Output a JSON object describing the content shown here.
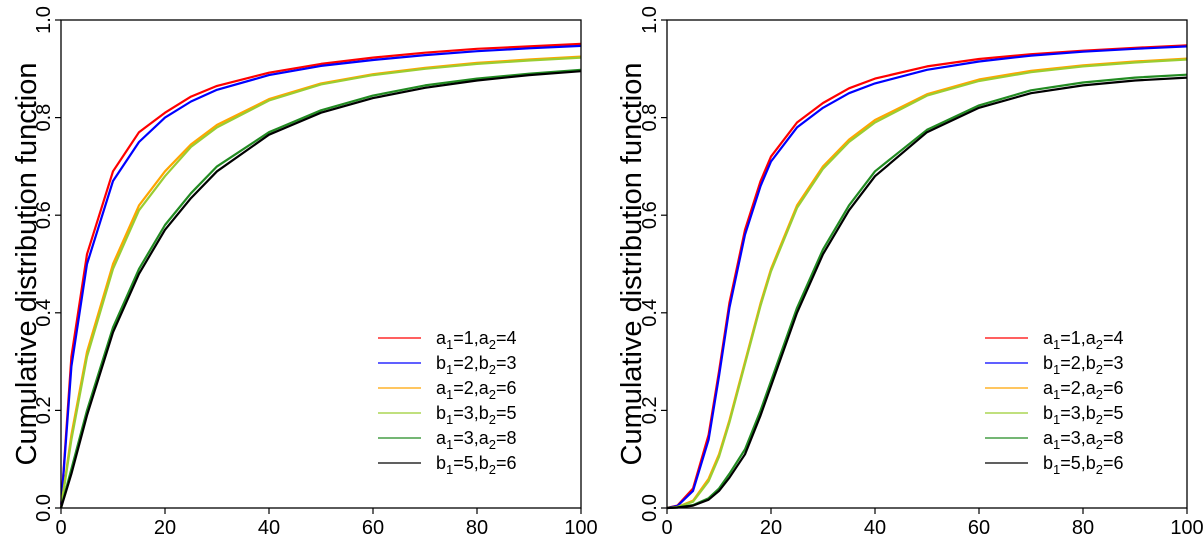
{
  "chart_data": [
    {
      "type": "line",
      "title": "",
      "xlabel": "",
      "ylabel": "Cumulative distribution function",
      "xlim": [
        0,
        100
      ],
      "ylim": [
        0,
        1
      ],
      "xticks": [
        0,
        20,
        40,
        60,
        80,
        100
      ],
      "yticks": [
        0.0,
        0.2,
        0.4,
        0.6,
        0.8,
        1.0
      ],
      "grid": false,
      "legend_position": "bottom-right",
      "x": [
        0,
        2,
        5,
        10,
        15,
        20,
        25,
        30,
        40,
        50,
        60,
        70,
        80,
        90,
        100
      ],
      "series": [
        {
          "name": "a1=1,a2=4",
          "color": "#ff0000",
          "legend": [
            {
              "t": "a"
            },
            {
              "s": "1"
            },
            {
              "t": "=1,a"
            },
            {
              "s": "2"
            },
            {
              "t": "=4"
            }
          ],
          "values": [
            0.0,
            0.31,
            0.52,
            0.69,
            0.77,
            0.81,
            0.843,
            0.865,
            0.892,
            0.91,
            0.923,
            0.933,
            0.941,
            0.946,
            0.951
          ]
        },
        {
          "name": "b1=2,b2=3",
          "color": "#0000ff",
          "legend": [
            {
              "t": "b"
            },
            {
              "s": "1"
            },
            {
              "t": "=2,b"
            },
            {
              "s": "2"
            },
            {
              "t": "=3"
            }
          ],
          "values": [
            0.0,
            0.29,
            0.5,
            0.67,
            0.75,
            0.8,
            0.833,
            0.857,
            0.887,
            0.906,
            0.918,
            0.928,
            0.936,
            0.942,
            0.947
          ]
        },
        {
          "name": "a1=2,a2=6",
          "color": "#ffa500",
          "legend": [
            {
              "t": "a"
            },
            {
              "s": "1"
            },
            {
              "t": "=2,a"
            },
            {
              "s": "2"
            },
            {
              "t": "=6"
            }
          ],
          "values": [
            0.0,
            0.15,
            0.32,
            0.5,
            0.62,
            0.69,
            0.745,
            0.785,
            0.838,
            0.87,
            0.889,
            0.902,
            0.912,
            0.919,
            0.925
          ]
        },
        {
          "name": "b1=3,b2=5",
          "color": "#9acd32",
          "legend": [
            {
              "t": "b"
            },
            {
              "s": "1"
            },
            {
              "t": "=3,b"
            },
            {
              "s": "2"
            },
            {
              "t": "=5"
            }
          ],
          "values": [
            0.0,
            0.14,
            0.31,
            0.49,
            0.61,
            0.68,
            0.74,
            0.78,
            0.835,
            0.868,
            0.887,
            0.9,
            0.91,
            0.917,
            0.923
          ]
        },
        {
          "name": "a1=3,a2=8",
          "color": "#228b22",
          "legend": [
            {
              "t": "a"
            },
            {
              "s": "1"
            },
            {
              "t": "=3,a"
            },
            {
              "s": "2"
            },
            {
              "t": "=8"
            }
          ],
          "values": [
            0.0,
            0.08,
            0.2,
            0.37,
            0.49,
            0.58,
            0.645,
            0.7,
            0.77,
            0.815,
            0.845,
            0.866,
            0.88,
            0.89,
            0.898
          ]
        },
        {
          "name": "b1=5,b2=6",
          "color": "#000000",
          "legend": [
            {
              "t": "b"
            },
            {
              "s": "1"
            },
            {
              "t": "=5,b"
            },
            {
              "s": "2"
            },
            {
              "t": "=6"
            }
          ],
          "values": [
            0.0,
            0.07,
            0.19,
            0.36,
            0.48,
            0.57,
            0.635,
            0.69,
            0.765,
            0.81,
            0.84,
            0.861,
            0.876,
            0.887,
            0.895
          ]
        }
      ]
    },
    {
      "type": "line",
      "title": "",
      "xlabel": "",
      "ylabel": "Cumulative distribution function",
      "xlim": [
        0,
        100
      ],
      "ylim": [
        0,
        1
      ],
      "xticks": [
        0,
        20,
        40,
        60,
        80,
        100
      ],
      "yticks": [
        0.0,
        0.2,
        0.4,
        0.6,
        0.8,
        1.0
      ],
      "grid": false,
      "legend_position": "bottom-right",
      "x": [
        0,
        2,
        5,
        8,
        10,
        12,
        15,
        18,
        20,
        25,
        30,
        35,
        40,
        50,
        60,
        70,
        80,
        90,
        100
      ],
      "series": [
        {
          "name": "a1=1,a2=4",
          "color": "#ff0000",
          "legend": [
            {
              "t": "a"
            },
            {
              "s": "1"
            },
            {
              "t": "=1,a"
            },
            {
              "s": "2"
            },
            {
              "t": "=4"
            }
          ],
          "values": [
            0.0,
            0.005,
            0.04,
            0.15,
            0.28,
            0.42,
            0.57,
            0.67,
            0.72,
            0.79,
            0.83,
            0.86,
            0.88,
            0.905,
            0.92,
            0.93,
            0.937,
            0.943,
            0.948
          ]
        },
        {
          "name": "b1=2,b2=3",
          "color": "#0000ff",
          "legend": [
            {
              "t": "b"
            },
            {
              "s": "1"
            },
            {
              "t": "=2,b"
            },
            {
              "s": "2"
            },
            {
              "t": "=3"
            }
          ],
          "values": [
            0.0,
            0.004,
            0.035,
            0.14,
            0.27,
            0.41,
            0.56,
            0.66,
            0.71,
            0.78,
            0.82,
            0.85,
            0.87,
            0.898,
            0.915,
            0.927,
            0.935,
            0.941,
            0.946
          ]
        },
        {
          "name": "a1=2,a2=6",
          "color": "#ffa500",
          "legend": [
            {
              "t": "a"
            },
            {
              "s": "1"
            },
            {
              "t": "=2,a"
            },
            {
              "s": "2"
            },
            {
              "t": "=6"
            }
          ],
          "values": [
            0.0,
            0.002,
            0.015,
            0.06,
            0.11,
            0.18,
            0.3,
            0.42,
            0.49,
            0.62,
            0.7,
            0.755,
            0.795,
            0.848,
            0.878,
            0.896,
            0.907,
            0.915,
            0.921
          ]
        },
        {
          "name": "b1=3,b2=5",
          "color": "#9acd32",
          "legend": [
            {
              "t": "b"
            },
            {
              "s": "1"
            },
            {
              "t": "=3,b"
            },
            {
              "s": "2"
            },
            {
              "t": "=5"
            }
          ],
          "values": [
            0.0,
            0.002,
            0.013,
            0.055,
            0.105,
            0.175,
            0.295,
            0.415,
            0.485,
            0.615,
            0.695,
            0.75,
            0.79,
            0.845,
            0.875,
            0.893,
            0.905,
            0.913,
            0.919
          ]
        },
        {
          "name": "a1=3,a2=8",
          "color": "#228b22",
          "legend": [
            {
              "t": "a"
            },
            {
              "s": "1"
            },
            {
              "t": "=3,a"
            },
            {
              "s": "2"
            },
            {
              "t": "=8"
            }
          ],
          "values": [
            0.0,
            0.001,
            0.006,
            0.02,
            0.04,
            0.07,
            0.12,
            0.2,
            0.26,
            0.41,
            0.53,
            0.62,
            0.69,
            0.775,
            0.825,
            0.856,
            0.872,
            0.882,
            0.888
          ]
        },
        {
          "name": "b1=5,b2=6",
          "color": "#000000",
          "legend": [
            {
              "t": "b"
            },
            {
              "s": "1"
            },
            {
              "t": "=5,b"
            },
            {
              "s": "2"
            },
            {
              "t": "=6"
            }
          ],
          "values": [
            0.0,
            0.001,
            0.005,
            0.017,
            0.035,
            0.062,
            0.11,
            0.19,
            0.25,
            0.4,
            0.52,
            0.61,
            0.68,
            0.77,
            0.82,
            0.85,
            0.866,
            0.876,
            0.882
          ]
        }
      ]
    }
  ]
}
